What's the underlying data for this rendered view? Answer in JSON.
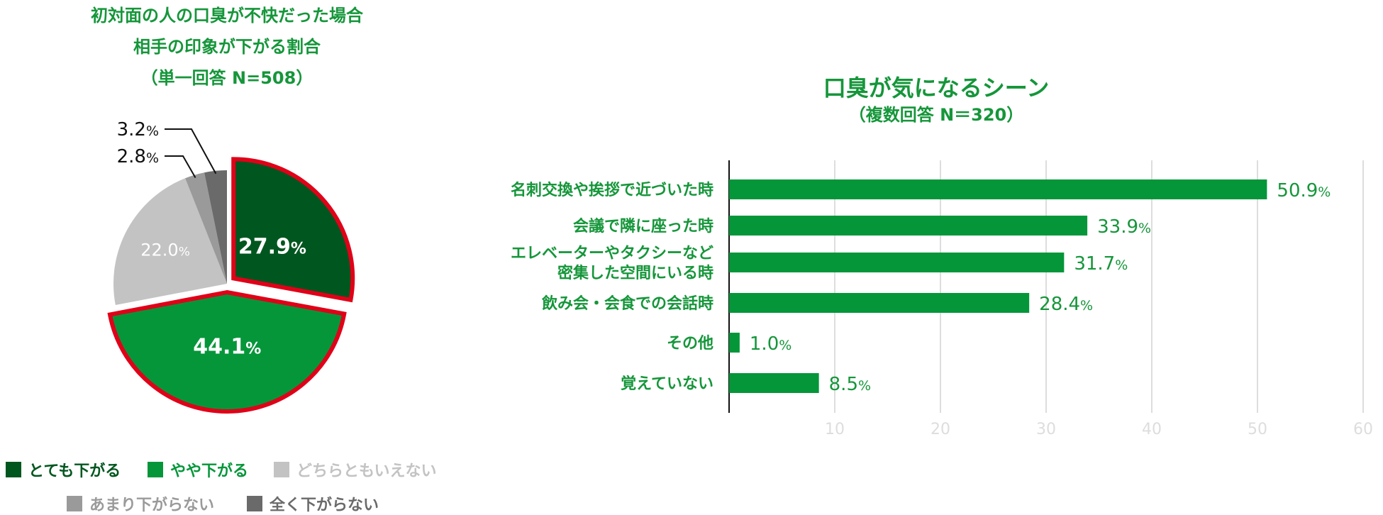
{
  "pie": {
    "title_lines": [
      "初対面の人の口臭が不快だった場合",
      "相手の印象が下がる割合",
      "（単一回答 N=508）"
    ],
    "legend": [
      {
        "label": "とても下がる",
        "color": "#00561f"
      },
      {
        "label": "やや下がる",
        "color": "#05963a"
      },
      {
        "label": "どちらともいえない",
        "color": "#c3c3c3"
      },
      {
        "label": "あまり下がらない",
        "color": "#9a9a9a"
      },
      {
        "label": "全く下がらない",
        "color": "#6a6a6a"
      }
    ],
    "highlight_color": "#e00018"
  },
  "bar": {
    "title": "口臭が気になるシーン",
    "subtitle": "（複数回答 N＝320）",
    "bar_color": "#05963a",
    "label_color": "#15963a",
    "tick_color": "#dddddd"
  },
  "chart_data": [
    {
      "type": "pie",
      "title": "初対面の人の口臭が不快だった場合 相手の印象が下がる割合",
      "subtitle": "（単一回答 N=508）",
      "categories": [
        "とても下がる",
        "やや下がる",
        "どちらともいえない",
        "あまり下がらない",
        "全く下がらない"
      ],
      "values": [
        27.9,
        44.1,
        22.0,
        2.8,
        3.2
      ],
      "labels": [
        "27.9",
        "44.1",
        "22.0",
        "2.8",
        "3.2"
      ],
      "unit": "%",
      "legend_position": "bottom"
    },
    {
      "type": "bar",
      "orientation": "horizontal",
      "title": "口臭が気になるシーン",
      "subtitle": "（複数回答 N＝320）",
      "categories": [
        [
          "名刺交換や挨拶で近づいた時"
        ],
        [
          "会議で隣に座った時"
        ],
        [
          "エレベーターやタクシーなど",
          "密集した空間にいる時"
        ],
        [
          "飲み会・会食での会話時"
        ],
        [
          "その他"
        ],
        [
          "覚えていない"
        ]
      ],
      "values": [
        50.9,
        33.9,
        31.7,
        28.4,
        1.0,
        8.5
      ],
      "labels": [
        "50.9",
        "33.9",
        "31.7",
        "28.4",
        "1.0",
        "8.5"
      ],
      "unit": "%",
      "xlim": [
        0,
        60
      ],
      "xticks": [
        10,
        20,
        30,
        40,
        50,
        60
      ],
      "grid": true
    }
  ]
}
